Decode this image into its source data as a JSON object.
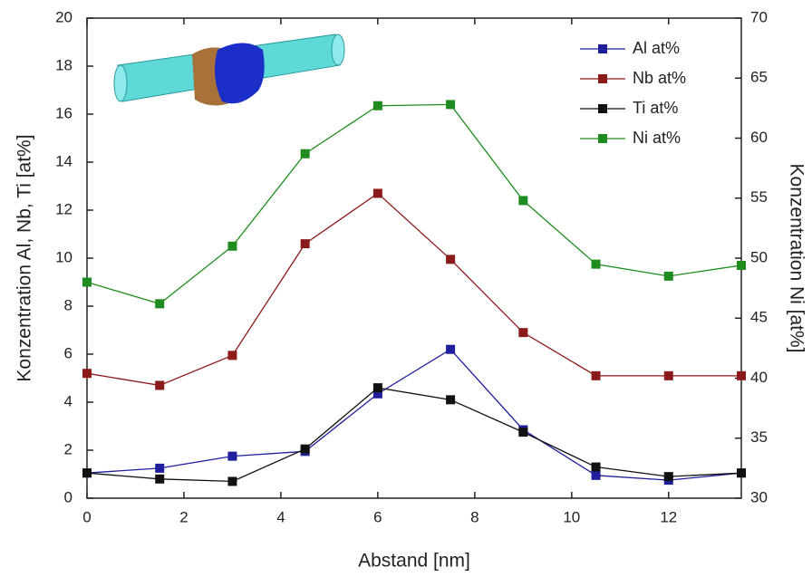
{
  "chart_data": {
    "type": "line",
    "xlabel": "Abstand [nm]",
    "ylabel": "Konzentration Al, Nb, Ti [at%]",
    "y2label": "Konzentration Ni [at%]",
    "x": [
      0,
      1.5,
      3,
      4.5,
      6,
      7.5,
      9,
      10.5,
      12,
      13.5
    ],
    "series": [
      {
        "name": "Al at%",
        "color": "#1f1f9e",
        "values": [
          1.05,
          1.25,
          1.75,
          1.95,
          4.35,
          6.2,
          2.85,
          0.95,
          0.75,
          1.05
        ]
      },
      {
        "name": "Nb at%",
        "color": "#8b1a1a",
        "values": [
          5.2,
          4.7,
          5.95,
          10.6,
          12.7,
          9.95,
          6.9,
          5.1,
          5.1,
          5.1
        ]
      },
      {
        "name": "Ti at%",
        "color": "#111111",
        "values": [
          1.05,
          0.8,
          0.7,
          2.05,
          4.6,
          4.1,
          2.75,
          1.3,
          0.9,
          1.05
        ]
      },
      {
        "name": "Ni at%",
        "color": "#1e8c1e",
        "axis": "y2",
        "values": [
          48,
          46.2,
          51,
          58.7,
          62.7,
          62.8,
          54.8,
          49.5,
          48.5,
          49.4
        ]
      }
    ],
    "xlim": [
      0,
      13.5
    ],
    "xticks": [
      0,
      2,
      4,
      6,
      8,
      10,
      12
    ],
    "ylim": [
      0,
      20
    ],
    "yticks": [
      0,
      2,
      4,
      6,
      8,
      10,
      12,
      14,
      16,
      18,
      20
    ],
    "y2lim": [
      30,
      70
    ],
    "y2ticks": [
      30,
      35,
      40,
      45,
      50,
      55,
      60,
      65,
      70
    ],
    "legend": "top-right",
    "grid": false
  }
}
